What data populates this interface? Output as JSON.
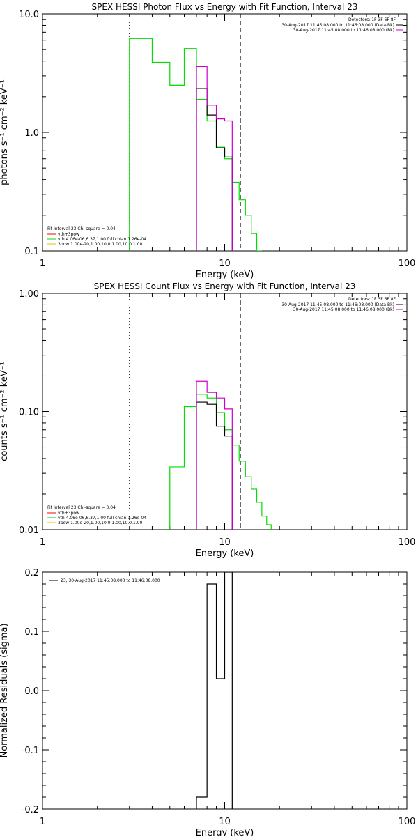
{
  "chart_data": [
    {
      "type": "line",
      "title": "SPEX HESSI Photon Flux vs Energy with Fit Function, Interval 23",
      "xlabel": "Energy (keV)",
      "ylabel": "photons s⁻¹ cm⁻² keV⁻¹",
      "xscale": "log",
      "yscale": "log",
      "xlim": [
        1,
        100
      ],
      "ylim": [
        0.1,
        10
      ],
      "xticks": [
        "1",
        "10",
        "100"
      ],
      "yticks": [
        "0.1",
        "1.0",
        "10.0"
      ],
      "vlines": [
        {
          "x": 3,
          "style": "dotted"
        },
        {
          "x": 12.2,
          "style": "dashed"
        }
      ],
      "legend_top": {
        "header": "Detectors: 1F 3F 6F 8F",
        "entries": [
          {
            "text": "30-Aug-2017 11:45:08.000 to 11:46:08.000 (Data-Bk)",
            "color": "#000000"
          },
          {
            "text": "30-Aug-2017 11:45:08.000 to 11:46:08.000 (Bk)",
            "color": "#cc00cc"
          }
        ]
      },
      "legend_bottom": {
        "header": "Fit Interval 23   Chi-square = 0.04",
        "entries": [
          {
            "text": "vth+3pow",
            "color": "#ff0000"
          },
          {
            "text": "vth 4.06e-06,6.37,1.00  full chian 1.26e-04",
            "color": "#00dd00"
          },
          {
            "text": "3pow 1.00e-20,1.00,10.0,1.00,10.0,1.00",
            "color": "#e0c000"
          }
        ]
      },
      "series": [
        {
          "color": "#00dd00",
          "edges": [
            3,
            4,
            5,
            6,
            7,
            8,
            9,
            10,
            11,
            12,
            13,
            14,
            15,
            16
          ],
          "values": [
            6.2,
            3.9,
            2.5,
            5.1,
            1.9,
            1.25,
            0.75,
            0.6,
            0.38,
            0.27,
            0.2,
            0.14,
            0.1
          ]
        },
        {
          "color": "#000000",
          "edges": [
            7,
            8,
            9,
            10,
            11
          ],
          "values": [
            2.35,
            1.4,
            0.74,
            0.62
          ]
        },
        {
          "color": "#cc00cc",
          "edges": [
            7,
            8,
            9,
            10,
            11
          ],
          "values": [
            3.6,
            1.7,
            1.3,
            1.25
          ]
        }
      ]
    },
    {
      "type": "line",
      "title": "SPEX HESSI Count Flux vs Energy with Fit Function, Interval 23",
      "xlabel": "Energy (keV)",
      "ylabel": "counts s⁻¹ cm⁻² keV⁻¹",
      "xscale": "log",
      "yscale": "log",
      "xlim": [
        1,
        100
      ],
      "ylim": [
        0.01,
        1
      ],
      "xticks": [
        "1",
        "10",
        "100"
      ],
      "yticks": [
        "0.01",
        "0.10",
        "1.00"
      ],
      "vlines": [
        {
          "x": 3,
          "style": "dotted"
        },
        {
          "x": 12.2,
          "style": "dashed"
        }
      ],
      "legend_top": {
        "header": "Detectors: 1F 3F 6F 8F",
        "entries": [
          {
            "text": "30-Aug-2017 11:45:08.000 to 11:46:08.000 (Data-Bk)",
            "color": "#000000"
          },
          {
            "text": "30-Aug-2017 11:45:08.000 to 11:46:08.000 (Bk)",
            "color": "#cc00cc"
          }
        ]
      },
      "legend_bottom": {
        "header": "Fit Interval 23   Chi-square = 0.04",
        "entries": [
          {
            "text": "vth+3pow",
            "color": "#ff0000"
          },
          {
            "text": "vth 4.06e-06,6.37,1.00  full chian 1.26e-04",
            "color": "#00dd00"
          },
          {
            "text": "3pow 1.00e-20,1.00,10.0,1.00,10.0,1.00",
            "color": "#e0c000"
          }
        ]
      },
      "series": [
        {
          "color": "#00dd00",
          "edges": [
            5,
            6,
            7,
            8,
            9,
            10,
            11,
            12,
            13,
            14,
            15,
            16,
            17,
            18
          ],
          "values": [
            0.034,
            0.11,
            0.14,
            0.13,
            0.098,
            0.07,
            0.052,
            0.038,
            0.028,
            0.022,
            0.017,
            0.013,
            0.011
          ]
        },
        {
          "color": "#000000",
          "edges": [
            7,
            8,
            9,
            10,
            11
          ],
          "values": [
            0.12,
            0.115,
            0.075,
            0.062
          ]
        },
        {
          "color": "#cc00cc",
          "edges": [
            7,
            8,
            9,
            10,
            11
          ],
          "values": [
            0.18,
            0.145,
            0.13,
            0.105
          ]
        }
      ]
    },
    {
      "type": "line",
      "title": "",
      "xlabel": "Energy (keV)",
      "ylabel": "Normalized Residuals (sigma)",
      "xscale": "log",
      "yscale": "linear",
      "xlim": [
        1,
        100
      ],
      "ylim": [
        -0.2,
        0.2
      ],
      "xticks": [
        "1",
        "10",
        "100"
      ],
      "yticks": [
        "-0.2",
        "-0.1",
        "0.0",
        "0.1",
        "0.2"
      ],
      "legend": {
        "entries": [
          {
            "text": "23, 30-Aug-2017 11:45:08.000 to 11:46:08.000",
            "color": "#000000"
          }
        ]
      },
      "series": [
        {
          "color": "#000000",
          "edges": [
            7,
            8,
            9,
            10,
            11
          ],
          "values": [
            -0.18,
            0.18,
            0.02,
            0.2
          ]
        }
      ]
    }
  ]
}
